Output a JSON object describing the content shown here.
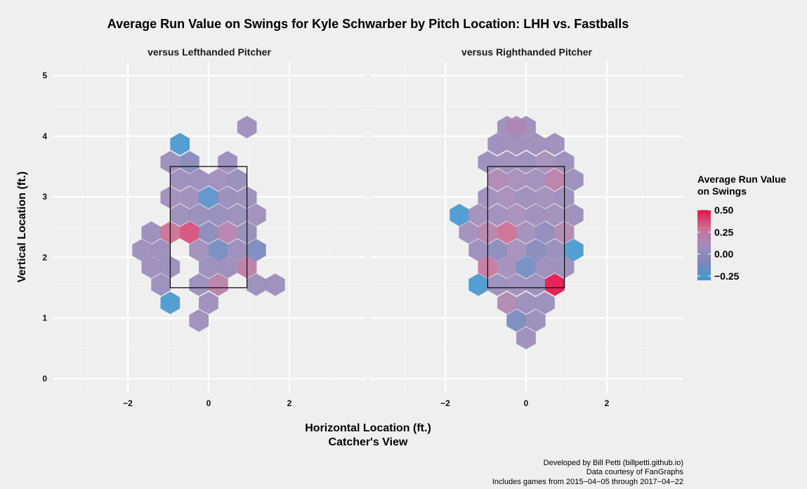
{
  "chart_data": {
    "type": "heatmap",
    "title": "Average Run Value on Swings for Kyle Schwarber by Pitch Location: LHH vs. Fastballs",
    "xlabel": "Horizontal Location (ft.)",
    "xlabel2": "Catcher's View",
    "ylabel": "Vertical Location (ft.)",
    "xticks": [
      "−2",
      "0",
      "2"
    ],
    "xtick_values": [
      -2,
      0,
      2
    ],
    "yticks": [
      "0",
      "1",
      "2",
      "3",
      "4",
      "5"
    ],
    "ytick_values": [
      0,
      1,
      2,
      3,
      4,
      5
    ],
    "xlim": [
      -4,
      4
    ],
    "ylim": [
      -0.15,
      5.2
    ],
    "legend": {
      "title_line1": "Average Run Value",
      "title_line2": "on Swings",
      "ticks": [
        "0.50",
        "0.25",
        "0.00",
        "−0.25"
      ],
      "tick_values": [
        0.5,
        0.25,
        0.0,
        -0.25
      ],
      "range": [
        -0.3,
        0.5
      ],
      "placement": "right",
      "colors": [
        "#3d9bd1",
        "#7f86bb",
        "#a48cba",
        "#cc6e92",
        "#e8104a"
      ]
    },
    "strike_zone": {
      "x": [
        -0.95,
        0.95
      ],
      "y": [
        1.5,
        3.5
      ]
    },
    "panels": [
      {
        "label": "versus Lefthanded Pitcher",
        "cells": [
          {
            "x": 0.95,
            "y": 4.15,
            "v": 0.05
          },
          {
            "x": -0.71,
            "y": 3.87,
            "v": -0.27
          },
          {
            "x": -0.95,
            "y": 3.57,
            "v": 0.04
          },
          {
            "x": -0.47,
            "y": 3.57,
            "v": -0.06
          },
          {
            "x": 0.47,
            "y": 3.57,
            "v": 0.03
          },
          {
            "x": -0.71,
            "y": 3.28,
            "v": 0.04
          },
          {
            "x": -0.24,
            "y": 3.28,
            "v": 0.04
          },
          {
            "x": 0.24,
            "y": 3.28,
            "v": 0.06
          },
          {
            "x": 0.71,
            "y": 3.28,
            "v": 0.02
          },
          {
            "x": -0.95,
            "y": 2.99,
            "v": 0.06
          },
          {
            "x": -0.47,
            "y": 2.99,
            "v": 0.05
          },
          {
            "x": 0.0,
            "y": 2.99,
            "v": -0.22
          },
          {
            "x": 0.47,
            "y": 2.99,
            "v": 0.02
          },
          {
            "x": 0.95,
            "y": 2.99,
            "v": 0.04
          },
          {
            "x": -0.71,
            "y": 2.7,
            "v": 0.04
          },
          {
            "x": -0.24,
            "y": 2.7,
            "v": 0.02
          },
          {
            "x": 0.24,
            "y": 2.7,
            "v": 0.01
          },
          {
            "x": 0.71,
            "y": 2.7,
            "v": 0.03
          },
          {
            "x": 1.18,
            "y": 2.7,
            "v": 0.06
          },
          {
            "x": -1.42,
            "y": 2.41,
            "v": 0.04
          },
          {
            "x": -0.95,
            "y": 2.41,
            "v": 0.3
          },
          {
            "x": -0.47,
            "y": 2.41,
            "v": 0.37
          },
          {
            "x": 0.0,
            "y": 2.41,
            "v": -0.05
          },
          {
            "x": 0.47,
            "y": 2.41,
            "v": 0.18
          },
          {
            "x": 0.95,
            "y": 2.41,
            "v": 0.02
          },
          {
            "x": -1.65,
            "y": 2.12,
            "v": 0.05
          },
          {
            "x": -1.18,
            "y": 2.12,
            "v": 0.04
          },
          {
            "x": -0.24,
            "y": 2.12,
            "v": 0.07
          },
          {
            "x": 0.24,
            "y": 2.12,
            "v": -0.14
          },
          {
            "x": 0.71,
            "y": 2.12,
            "v": 0.04
          },
          {
            "x": 1.18,
            "y": 2.12,
            "v": -0.12
          },
          {
            "x": -1.42,
            "y": 1.84,
            "v": 0.05
          },
          {
            "x": -0.95,
            "y": 1.84,
            "v": 0.03
          },
          {
            "x": 0.0,
            "y": 1.84,
            "v": 0.03
          },
          {
            "x": 0.47,
            "y": 1.84,
            "v": 0.04
          },
          {
            "x": 0.95,
            "y": 1.84,
            "v": 0.22
          },
          {
            "x": -1.18,
            "y": 1.55,
            "v": 0.04
          },
          {
            "x": -0.24,
            "y": 1.55,
            "v": 0.04
          },
          {
            "x": 0.24,
            "y": 1.55,
            "v": 0.2
          },
          {
            "x": 1.18,
            "y": 1.55,
            "v": 0.04
          },
          {
            "x": 1.65,
            "y": 1.55,
            "v": 0.04
          },
          {
            "x": -0.95,
            "y": 1.25,
            "v": -0.27
          },
          {
            "x": 0.0,
            "y": 1.25,
            "v": 0.05
          },
          {
            "x": -0.24,
            "y": 0.96,
            "v": 0.06
          }
        ]
      },
      {
        "label": "versus Righthanded Pitcher",
        "cells": [
          {
            "x": -0.47,
            "y": 4.15,
            "v": 0.05
          },
          {
            "x": 0.0,
            "y": 4.15,
            "v": 0.05
          },
          {
            "x": -0.24,
            "y": 4.15,
            "v": 0.14
          },
          {
            "x": -0.71,
            "y": 3.87,
            "v": 0.04
          },
          {
            "x": -0.24,
            "y": 3.87,
            "v": 0.05
          },
          {
            "x": 0.24,
            "y": 3.87,
            "v": 0.05
          },
          {
            "x": 0.71,
            "y": 3.87,
            "v": 0.05
          },
          {
            "x": -0.95,
            "y": 3.57,
            "v": 0.04
          },
          {
            "x": -0.47,
            "y": 3.57,
            "v": 0.05
          },
          {
            "x": 0.0,
            "y": 3.57,
            "v": 0.04
          },
          {
            "x": 0.47,
            "y": 3.57,
            "v": 0.1
          },
          {
            "x": 0.95,
            "y": 3.57,
            "v": 0.04
          },
          {
            "x": -0.71,
            "y": 3.28,
            "v": 0.14
          },
          {
            "x": -0.24,
            "y": 3.28,
            "v": 0.1
          },
          {
            "x": 0.24,
            "y": 3.28,
            "v": 0.06
          },
          {
            "x": 0.71,
            "y": 3.28,
            "v": 0.2
          },
          {
            "x": 1.18,
            "y": 3.28,
            "v": 0.04
          },
          {
            "x": -0.95,
            "y": 2.99,
            "v": 0.06
          },
          {
            "x": -0.47,
            "y": 2.99,
            "v": 0.1
          },
          {
            "x": 0.0,
            "y": 2.99,
            "v": 0.04
          },
          {
            "x": 0.47,
            "y": 2.99,
            "v": 0.08
          },
          {
            "x": 0.95,
            "y": 2.99,
            "v": 0.04
          },
          {
            "x": -1.65,
            "y": 2.7,
            "v": -0.27
          },
          {
            "x": -1.18,
            "y": 2.7,
            "v": 0.08
          },
          {
            "x": -0.71,
            "y": 2.7,
            "v": 0.06
          },
          {
            "x": -0.24,
            "y": 2.7,
            "v": 0.1
          },
          {
            "x": 0.24,
            "y": 2.7,
            "v": 0.05
          },
          {
            "x": 0.71,
            "y": 2.7,
            "v": 0.06
          },
          {
            "x": 1.18,
            "y": 2.7,
            "v": 0.04
          },
          {
            "x": -1.42,
            "y": 2.41,
            "v": 0.06
          },
          {
            "x": -0.95,
            "y": 2.41,
            "v": 0.18
          },
          {
            "x": -0.47,
            "y": 2.41,
            "v": 0.3
          },
          {
            "x": 0.0,
            "y": 2.41,
            "v": 0.08
          },
          {
            "x": 0.47,
            "y": 2.41,
            "v": -0.02
          },
          {
            "x": 0.95,
            "y": 2.41,
            "v": 0.15
          },
          {
            "x": -1.18,
            "y": 2.12,
            "v": 0.04
          },
          {
            "x": -0.71,
            "y": 2.12,
            "v": -0.04
          },
          {
            "x": -0.24,
            "y": 2.12,
            "v": 0.1
          },
          {
            "x": 0.24,
            "y": 2.12,
            "v": -0.06
          },
          {
            "x": 0.71,
            "y": 2.12,
            "v": 0.02
          },
          {
            "x": 1.18,
            "y": 2.12,
            "v": -0.27
          },
          {
            "x": -0.95,
            "y": 1.84,
            "v": 0.25
          },
          {
            "x": -0.47,
            "y": 1.84,
            "v": 0.08
          },
          {
            "x": 0.0,
            "y": 1.84,
            "v": -0.15
          },
          {
            "x": 0.47,
            "y": 1.84,
            "v": 0.04
          },
          {
            "x": 0.95,
            "y": 1.84,
            "v": 0.04
          },
          {
            "x": -1.18,
            "y": 1.55,
            "v": -0.27
          },
          {
            "x": -0.71,
            "y": 1.55,
            "v": 0.04
          },
          {
            "x": -0.24,
            "y": 1.55,
            "v": 0.06
          },
          {
            "x": 0.24,
            "y": 1.55,
            "v": 0.04
          },
          {
            "x": 0.71,
            "y": 1.55,
            "v": 0.5
          },
          {
            "x": -0.47,
            "y": 1.25,
            "v": 0.15
          },
          {
            "x": 0.0,
            "y": 1.25,
            "v": 0.04
          },
          {
            "x": 0.47,
            "y": 1.25,
            "v": 0.04
          },
          {
            "x": -0.24,
            "y": 0.96,
            "v": -0.12
          },
          {
            "x": 0.24,
            "y": 0.96,
            "v": 0.04
          },
          {
            "x": 0.0,
            "y": 0.67,
            "v": 0.05
          }
        ]
      }
    ]
  },
  "caption": {
    "line1": "Developed by Bill Petti (billpetti.github.io)",
    "line2": "Data courtesy of FanGraphs",
    "line3": "Includes games from 2015−04−05 through 2017−04−22"
  }
}
